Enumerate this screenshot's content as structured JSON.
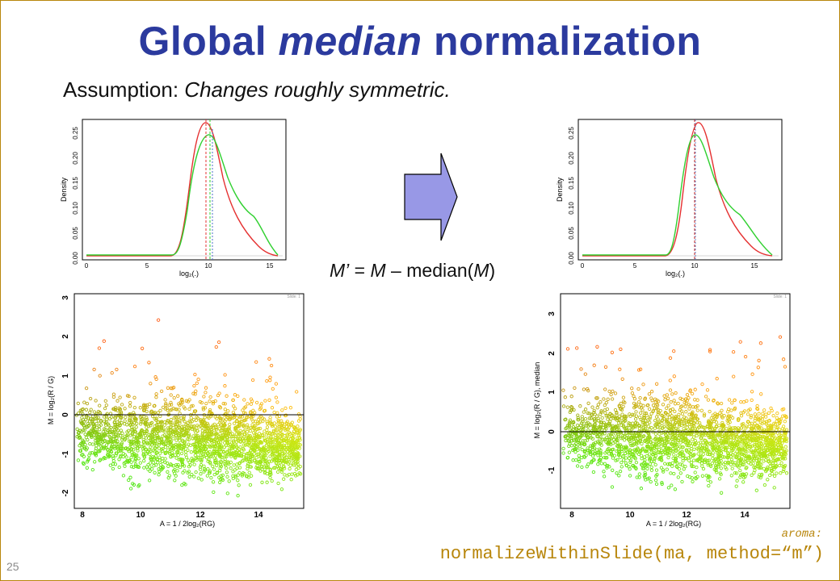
{
  "slide": {
    "title_part1": "Global ",
    "title_part2": "median",
    "title_part3": " normalization",
    "assumption_label": "Assumption: ",
    "assumption_text": "Changes roughly symmetric.",
    "formula_m_prime": "M’",
    "formula_eq": " = ",
    "formula_m": "M",
    "formula_minus_median": " – median(",
    "formula_m2": "M",
    "formula_close": ")",
    "page_number": "25",
    "aroma_label": "aroma:",
    "code_text": "normalizeWithinSlide(ma, method=“m”)"
  },
  "colors": {
    "title": "#2b3a9e",
    "code": "#b8860b",
    "arrow_fill": "#9898e6",
    "red_curve": "#e53030",
    "green_curve": "#30d030"
  },
  "density_before": {
    "ylabel": "Density",
    "xlabel": "log₂(.)",
    "x_ticks": [
      "0",
      "5",
      "10",
      "15"
    ],
    "y_ticks": [
      "0.00",
      "0.05",
      "0.10",
      "0.15",
      "0.20",
      "0.25"
    ]
  },
  "density_after": {
    "ylabel": "Density",
    "xlabel": "log₂(.)",
    "x_ticks": [
      "0",
      "5",
      "10",
      "15"
    ],
    "y_ticks": [
      "0.00",
      "0.05",
      "0.10",
      "0.15",
      "0.20",
      "0.25"
    ]
  },
  "ma_before": {
    "ylabel": "M = log₂(R / G)",
    "xlabel": "A = 1 / 2log₂(RG)",
    "x_ticks": [
      "8",
      "10",
      "12",
      "14"
    ],
    "y_ticks": [
      "-2",
      "-1",
      "0",
      "1",
      "2",
      "3"
    ],
    "corner_note": "Slide: 1"
  },
  "ma_after": {
    "ylabel": "M = log₂(R / G), median",
    "xlabel": "A = 1 / 2log₂(RG)",
    "x_ticks": [
      "8",
      "10",
      "12",
      "14"
    ],
    "y_ticks": [
      "-1",
      "0",
      "1",
      "2",
      "3"
    ],
    "corner_note": "Slide: 1"
  }
}
